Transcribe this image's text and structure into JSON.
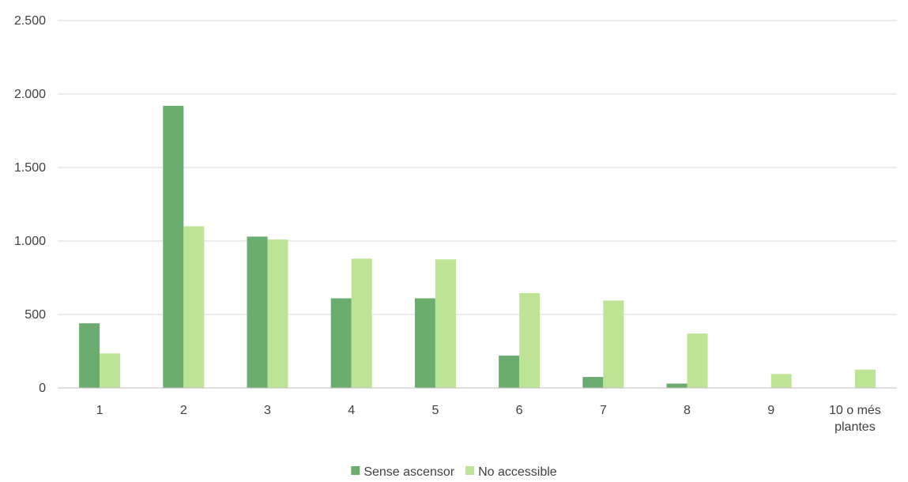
{
  "chart_data": {
    "type": "bar",
    "title": "",
    "xlabel": "",
    "ylabel": "",
    "categories": [
      "1",
      "2",
      "3",
      "4",
      "5",
      "6",
      "7",
      "8",
      "9",
      "10 o més plantes"
    ],
    "category_lines": [
      [
        "1"
      ],
      [
        "2"
      ],
      [
        "3"
      ],
      [
        "4"
      ],
      [
        "5"
      ],
      [
        "6"
      ],
      [
        "7"
      ],
      [
        "8"
      ],
      [
        "9"
      ],
      [
        "10 o més",
        "plantes"
      ]
    ],
    "series": [
      {
        "name": "Sense ascensor",
        "color": "#6aad6f",
        "values": [
          440,
          1920,
          1030,
          610,
          610,
          220,
          75,
          30,
          0,
          0
        ]
      },
      {
        "name": "No accessible",
        "color": "#bde394",
        "values": [
          235,
          1100,
          1010,
          880,
          875,
          645,
          595,
          370,
          95,
          125
        ]
      }
    ],
    "ylim": [
      0,
      2500
    ],
    "yticks": [
      0,
      500,
      1000,
      1500,
      2000,
      2500
    ],
    "ytick_labels": [
      "0",
      "500",
      "1.000",
      "1.500",
      "2.000",
      "2.500"
    ],
    "grid": true,
    "legend_position": "bottom"
  }
}
